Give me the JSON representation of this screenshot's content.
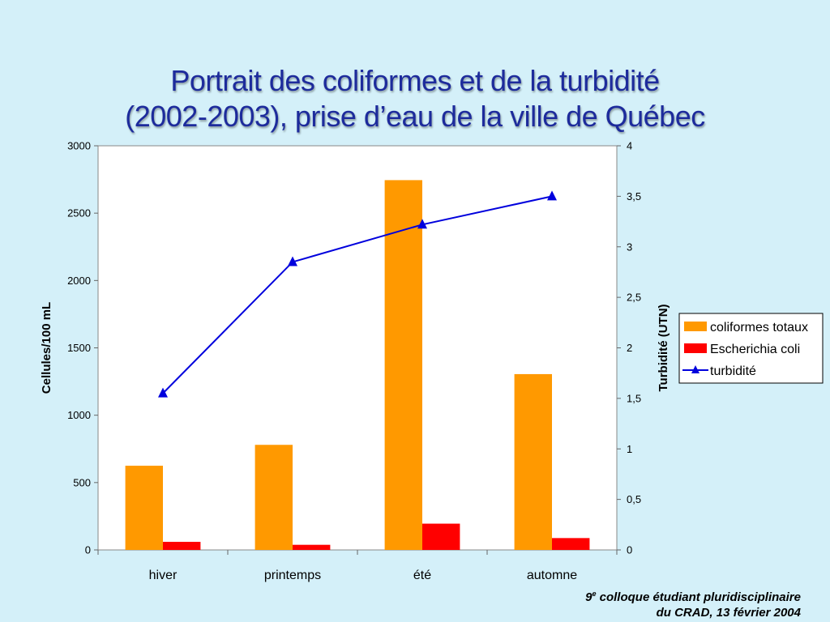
{
  "slide": {
    "title_line1": "Portrait des coliformes et de la turbidité",
    "title_line2": "(2002-2003), prise d’eau de la ville de Québec",
    "footer": {
      "ordinal": "9",
      "ordinal_suffix": "e",
      "line1_rest": " colloque étudiant pluridisciplinaire",
      "line2": "du CRAD, 13 février 2004"
    }
  },
  "chart_data": {
    "type": "bar",
    "categories": [
      "hiver",
      "printemps",
      "été",
      "automne"
    ],
    "series": [
      {
        "name": "coliformes totaux",
        "type": "bar",
        "axis": "left",
        "color": "#ff9900",
        "values": [
          625,
          780,
          2745,
          1305
        ]
      },
      {
        "name": "Escherichia coli",
        "type": "bar",
        "axis": "left",
        "color": "#ff0000",
        "values": [
          60,
          38,
          195,
          88
        ]
      },
      {
        "name": "turbidité",
        "type": "line",
        "axis": "right",
        "color": "#0000dd",
        "marker": "triangle",
        "values": [
          1.55,
          2.85,
          3.22,
          3.5
        ]
      }
    ],
    "ylabel": "Cellules/100 mL",
    "y2label": "Turbidité (UTN)",
    "ylim": [
      0,
      3000
    ],
    "y2lim": [
      0,
      4
    ],
    "yticks": [
      "0",
      "500",
      "1000",
      "1500",
      "2000",
      "2500",
      "3000"
    ],
    "y2ticks": [
      "0",
      "0,5",
      "1",
      "1,5",
      "2",
      "2,5",
      "3",
      "3,5",
      "4"
    ],
    "legend_position": "right",
    "grid": false
  }
}
